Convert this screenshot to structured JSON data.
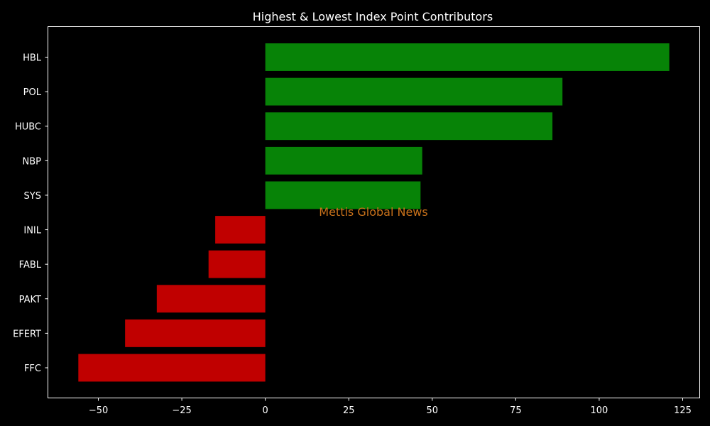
{
  "chart_data": {
    "type": "bar",
    "orientation": "horizontal",
    "title": "Highest & Lowest Index Point Contributors",
    "xlabel": "",
    "ylabel": "",
    "categories": [
      "HBL",
      "POL",
      "HUBC",
      "NBP",
      "SYS",
      "INIL",
      "FABL",
      "PAKT",
      "EFERT",
      "FFC"
    ],
    "values": [
      121,
      89,
      86,
      47,
      46.5,
      -15,
      -17,
      -32.5,
      -42,
      -56
    ],
    "xlim": [
      -65,
      130
    ],
    "xticks": [
      -50,
      -25,
      0,
      25,
      50,
      75,
      100,
      125
    ],
    "xtick_labels": [
      "−50",
      "−25",
      "0",
      "25",
      "50",
      "75",
      "100",
      "125"
    ],
    "grid": false,
    "colors": {
      "positive": "#078307",
      "negative": "#c00000",
      "background": "#000000",
      "text": "#ffffff"
    },
    "annotation": {
      "text": "Mettis Global News",
      "color": "#c8711a"
    }
  }
}
